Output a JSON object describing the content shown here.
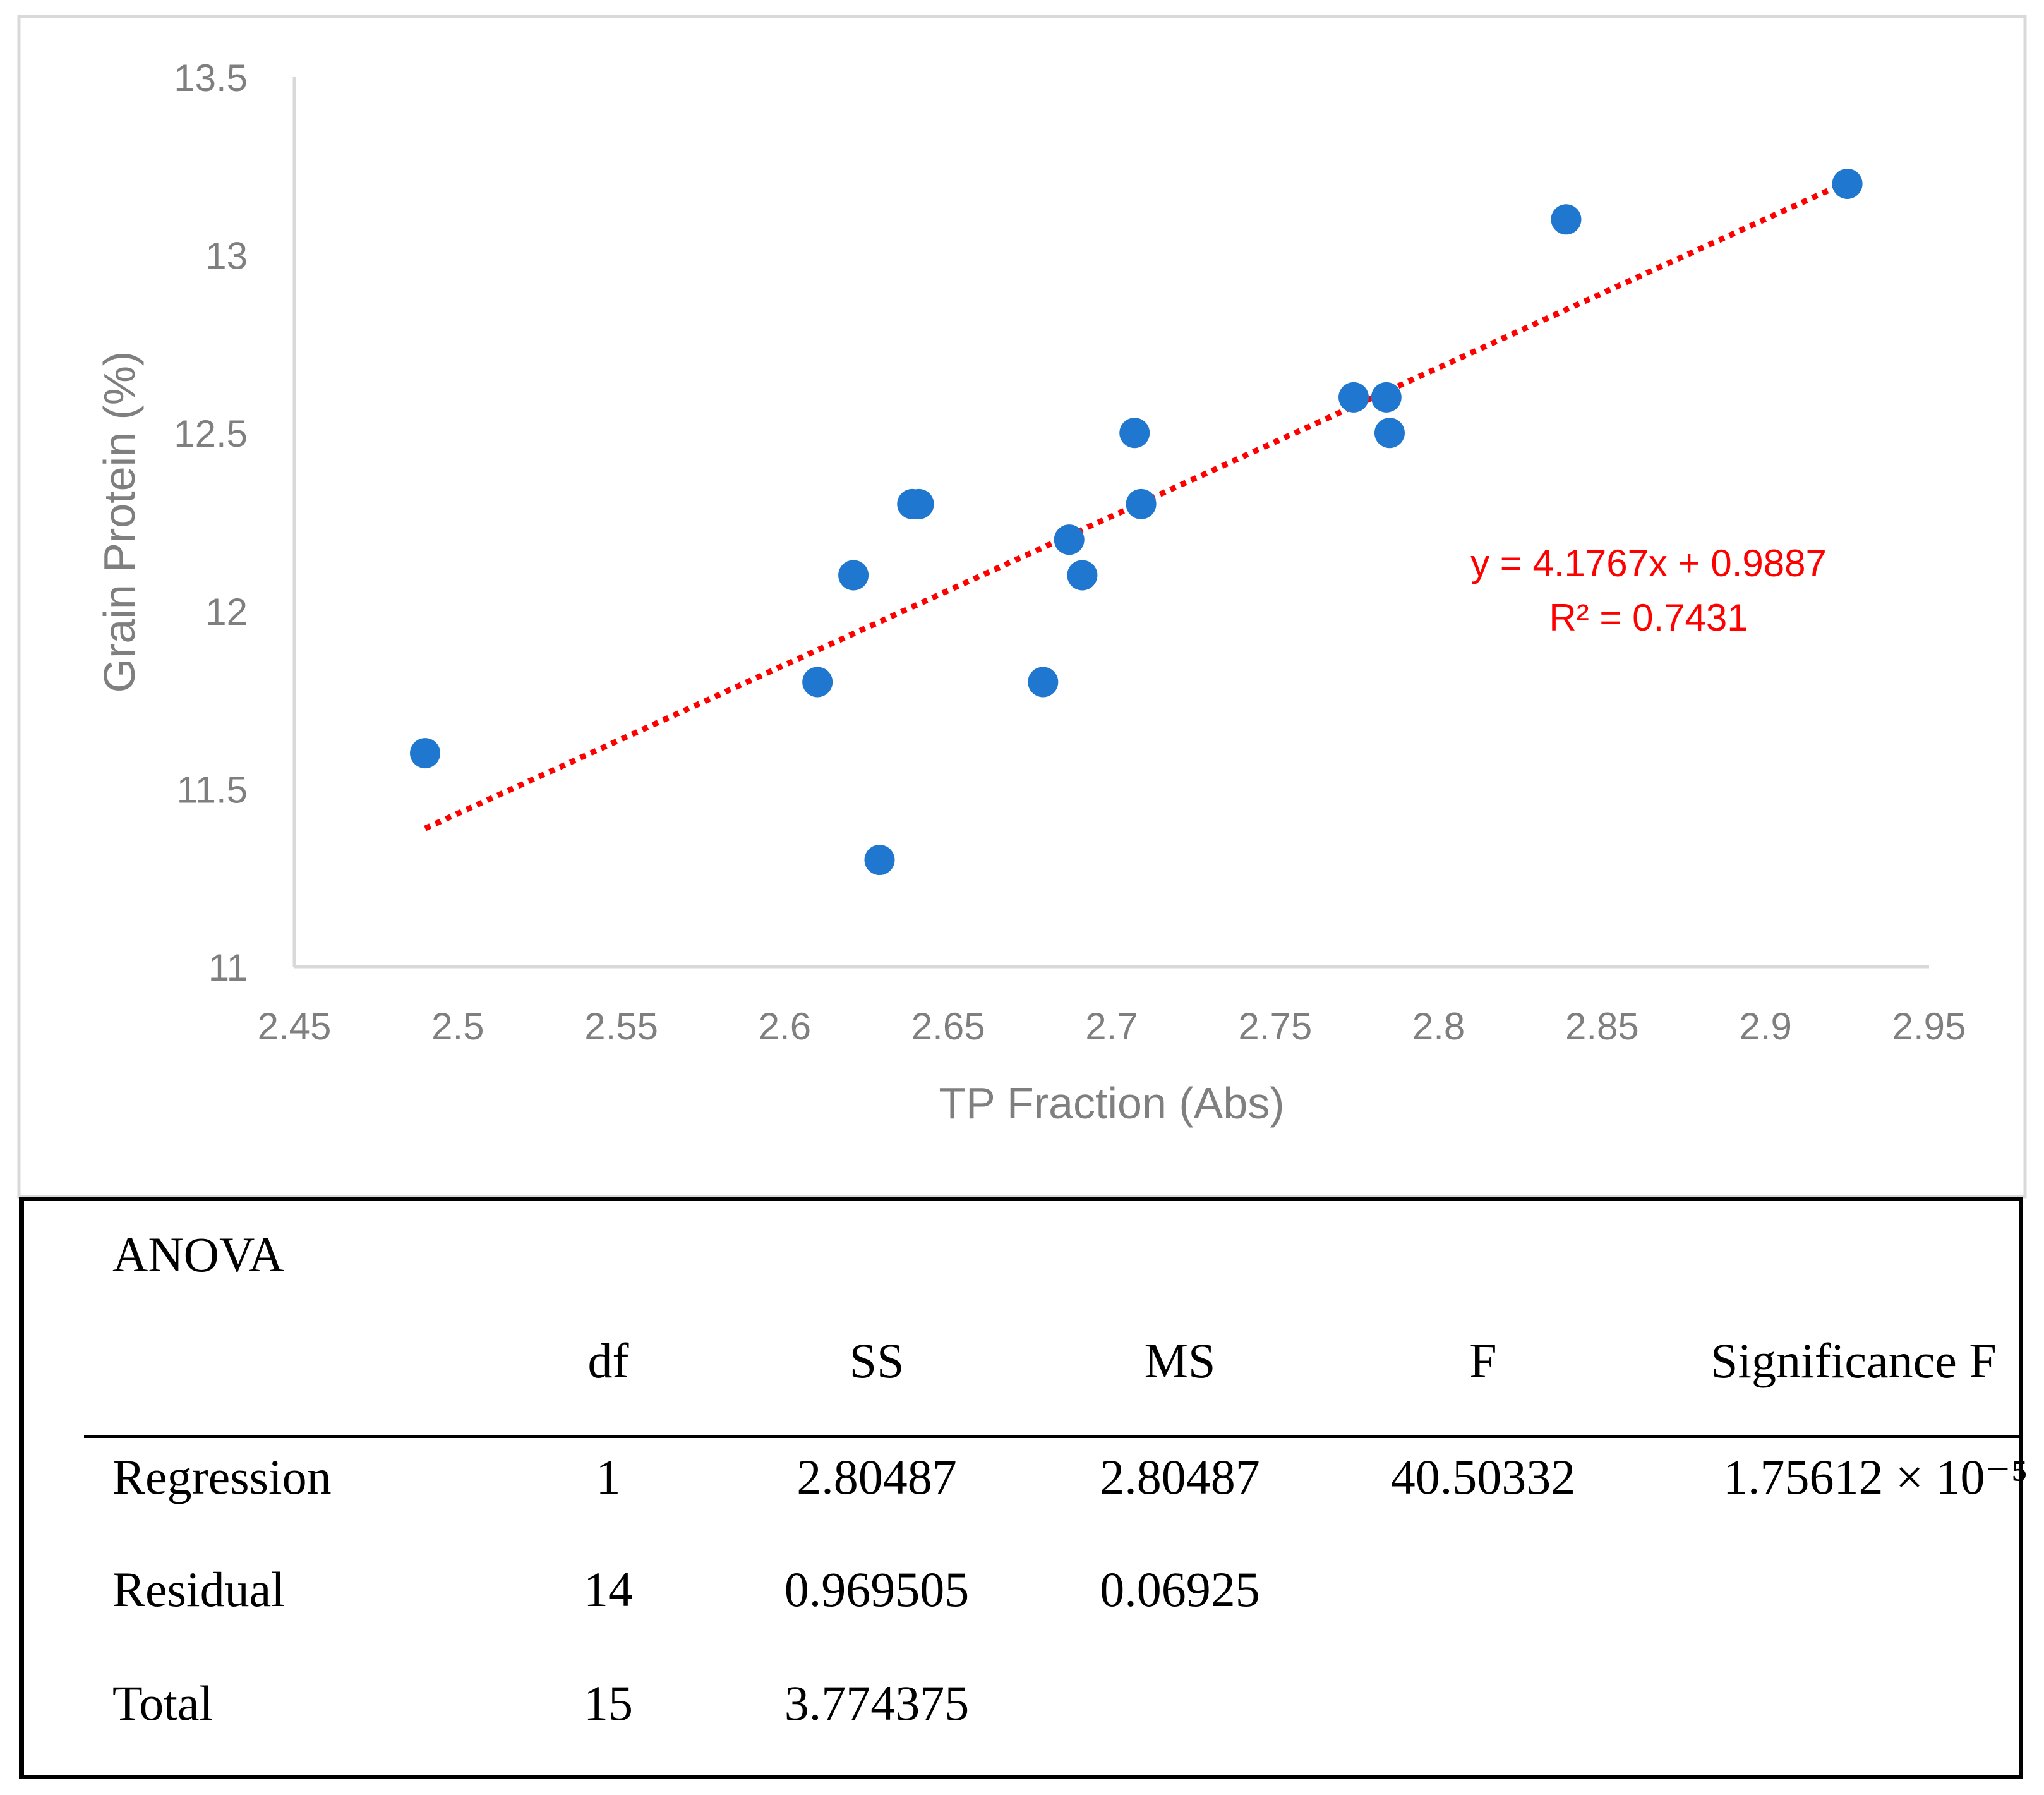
{
  "chart_data": {
    "type": "scatter",
    "title": "",
    "xlabel": "TP Fraction (Abs)",
    "ylabel": "Grain Protein (%)",
    "xlim": [
      2.45,
      2.95
    ],
    "ylim": [
      11,
      13.5
    ],
    "x_ticks": [
      "2.45",
      "2.5",
      "2.55",
      "2.6",
      "2.65",
      "2.7",
      "2.75",
      "2.8",
      "2.85",
      "2.9",
      "2.95"
    ],
    "y_ticks": [
      "11",
      "11.5",
      "12",
      "12.5",
      "13",
      "13.5"
    ],
    "series": [
      {
        "name": "Grain Protein",
        "color": "#1f77d0",
        "points": [
          {
            "x": 2.49,
            "y": 11.6
          },
          {
            "x": 2.61,
            "y": 11.8
          },
          {
            "x": 2.621,
            "y": 12.1
          },
          {
            "x": 2.629,
            "y": 11.3
          },
          {
            "x": 2.639,
            "y": 12.3
          },
          {
            "x": 2.641,
            "y": 12.3
          },
          {
            "x": 2.679,
            "y": 11.8
          },
          {
            "x": 2.687,
            "y": 12.2
          },
          {
            "x": 2.691,
            "y": 12.1
          },
          {
            "x": 2.707,
            "y": 12.5
          },
          {
            "x": 2.709,
            "y": 12.3
          },
          {
            "x": 2.774,
            "y": 12.6
          },
          {
            "x": 2.784,
            "y": 12.6
          },
          {
            "x": 2.785,
            "y": 12.5
          },
          {
            "x": 2.839,
            "y": 13.1
          },
          {
            "x": 2.925,
            "y": 13.2
          }
        ]
      }
    ],
    "trendline": {
      "color": "#ff0000",
      "style": "dotted",
      "slope": 4.1767,
      "intercept": 0.9887,
      "x_range": [
        2.49,
        2.925
      ],
      "equation_label": "y = 4.1767x + 0.9887",
      "r2_label": "R² = 0.7431"
    }
  },
  "anova": {
    "title": "ANOVA",
    "headers": [
      "df",
      "SS",
      "MS",
      "F",
      "Significance F"
    ],
    "rows": [
      {
        "label": "Regression",
        "df": "1",
        "ss": "2.80487",
        "ms": "2.80487",
        "f": "40.50332",
        "sig": "1.75612 × 10⁻⁵"
      },
      {
        "label": "Residual",
        "df": "14",
        "ss": "0.969505",
        "ms": "0.06925",
        "f": "",
        "sig": ""
      },
      {
        "label": "Total",
        "df": "15",
        "ss": "3.774375",
        "ms": "",
        "f": "",
        "sig": ""
      }
    ]
  }
}
